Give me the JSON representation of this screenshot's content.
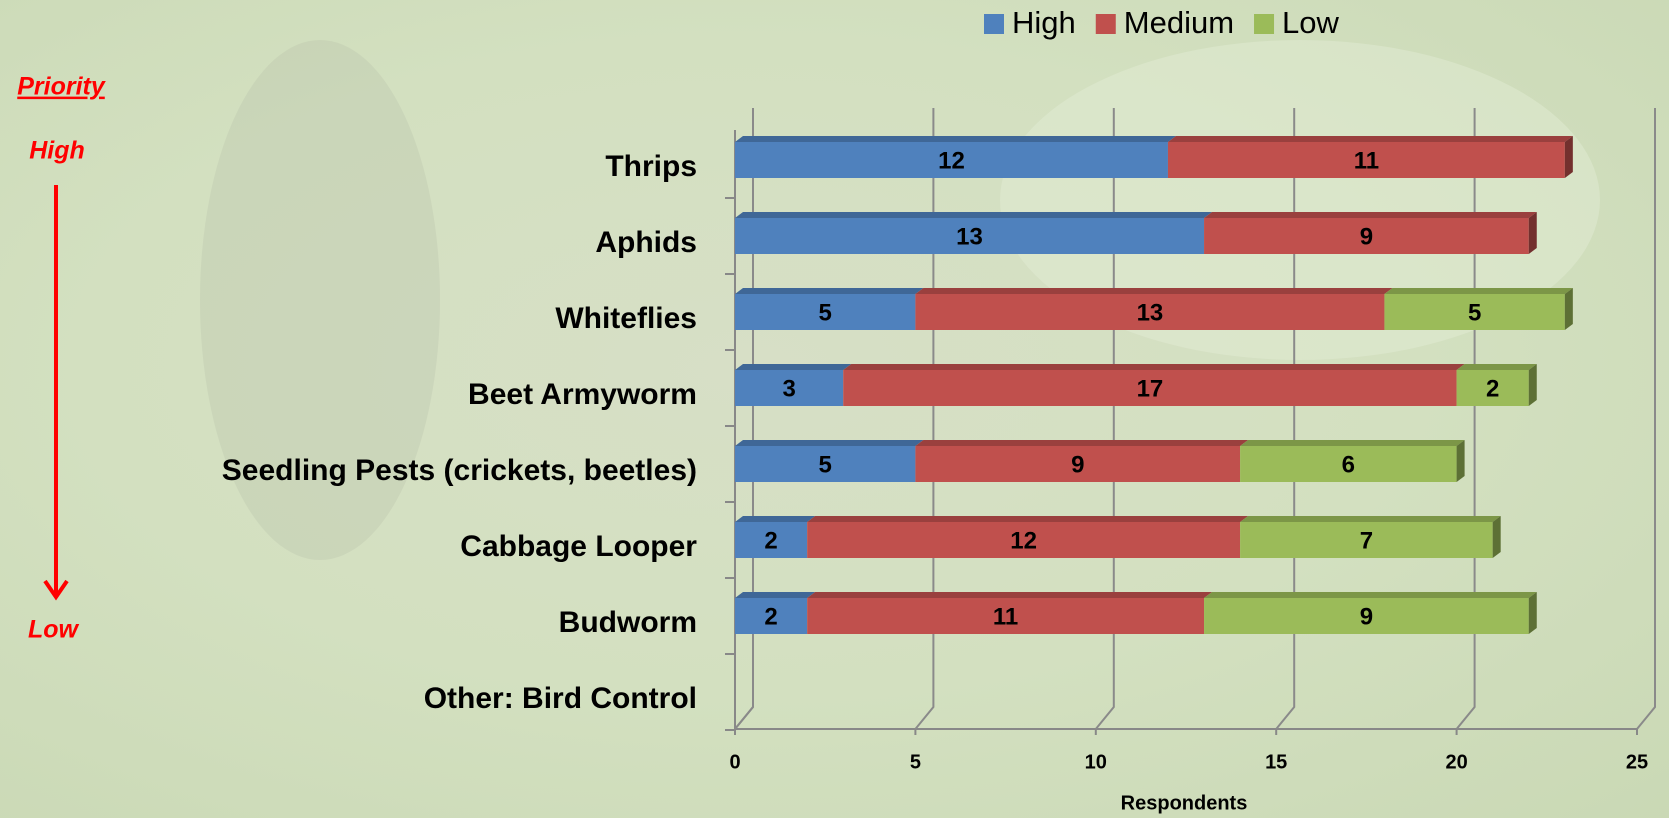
{
  "chart_data": {
    "type": "bar",
    "orientation": "horizontal",
    "stacked": true,
    "categories": [
      "Thrips",
      "Aphids",
      "Whiteflies",
      "Beet Armyworm",
      "Seedling Pests (crickets, beetles)",
      "Cabbage Looper",
      "Budworm",
      "Other: Bird Control"
    ],
    "series": [
      {
        "name": "High",
        "color": "#4f81bd",
        "values": [
          12,
          13,
          5,
          3,
          5,
          2,
          2,
          null
        ]
      },
      {
        "name": "Medium",
        "color": "#c0504d",
        "values": [
          11,
          9,
          13,
          17,
          9,
          12,
          11,
          null
        ]
      },
      {
        "name": "Low",
        "color": "#9bbb59",
        "values": [
          null,
          null,
          5,
          2,
          6,
          7,
          9,
          null
        ]
      }
    ],
    "x_label": "Respondents",
    "xlim": [
      0,
      25
    ],
    "xticks": [
      0,
      5,
      10,
      15,
      20,
      25
    ],
    "grid": true,
    "legend": "top",
    "annotations": [
      "Priority",
      "High",
      "Low"
    ]
  }
}
